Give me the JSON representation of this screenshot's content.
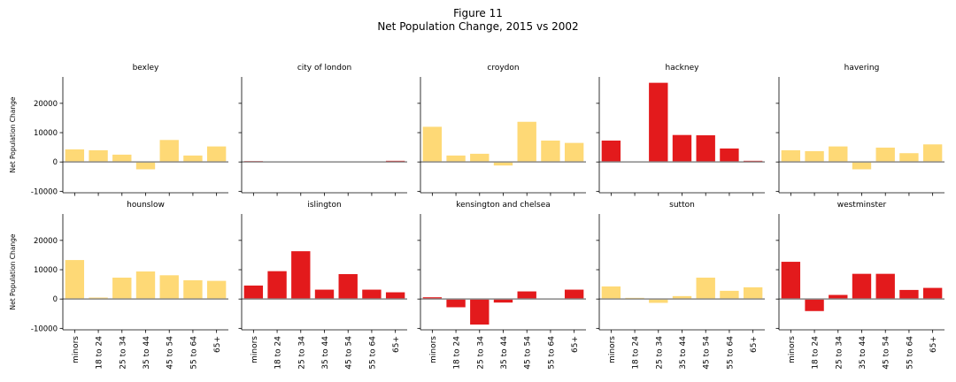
{
  "figure": {
    "title_line1": "Figure 11",
    "title_line2": "Net Population Change, 2015 vs 2002"
  },
  "colors": {
    "highlight": "#e31a1c",
    "normal": "#fed976",
    "zero_line": "#888888"
  },
  "chart_data": {
    "type": "bar",
    "ylabel": "Net Population Change",
    "categories": [
      "minors",
      "18 to 24",
      "25 to 34",
      "35 to 44",
      "45 to 54",
      "55 to 64",
      "65+"
    ],
    "yticks": [
      -10000,
      0,
      10000,
      20000
    ],
    "ylim": [
      -10500,
      29000
    ],
    "sharey": true,
    "panels": [
      {
        "name": "bexley",
        "highlight": false,
        "values": [
          4300,
          4000,
          2500,
          -2500,
          7500,
          2200,
          5300
        ]
      },
      {
        "name": "city of london",
        "highlight": true,
        "values": [
          300,
          0,
          0,
          0,
          0,
          0,
          400
        ]
      },
      {
        "name": "croydon",
        "highlight": false,
        "values": [
          12000,
          2200,
          2800,
          -1200,
          13700,
          7300,
          6500
        ]
      },
      {
        "name": "hackney",
        "highlight": true,
        "values": [
          7300,
          0,
          27000,
          9200,
          9100,
          4600,
          400
        ]
      },
      {
        "name": "havering",
        "highlight": false,
        "values": [
          4000,
          3700,
          5300,
          -2500,
          4900,
          3000,
          6000
        ]
      },
      {
        "name": "hounslow",
        "highlight": false,
        "values": [
          13300,
          500,
          7300,
          9400,
          8100,
          6400,
          6200
        ]
      },
      {
        "name": "islington",
        "highlight": true,
        "values": [
          4600,
          9500,
          16300,
          3200,
          8500,
          3200,
          2300
        ]
      },
      {
        "name": "kensington and chelsea",
        "highlight": true,
        "values": [
          600,
          -2800,
          -8700,
          -1200,
          2600,
          0,
          3200
        ]
      },
      {
        "name": "sutton",
        "highlight": false,
        "values": [
          4300,
          400,
          -1300,
          1000,
          7300,
          2800,
          4000
        ]
      },
      {
        "name": "westminster",
        "highlight": true,
        "values": [
          12700,
          -4100,
          1400,
          8600,
          8600,
          3100,
          3800
        ]
      }
    ]
  }
}
